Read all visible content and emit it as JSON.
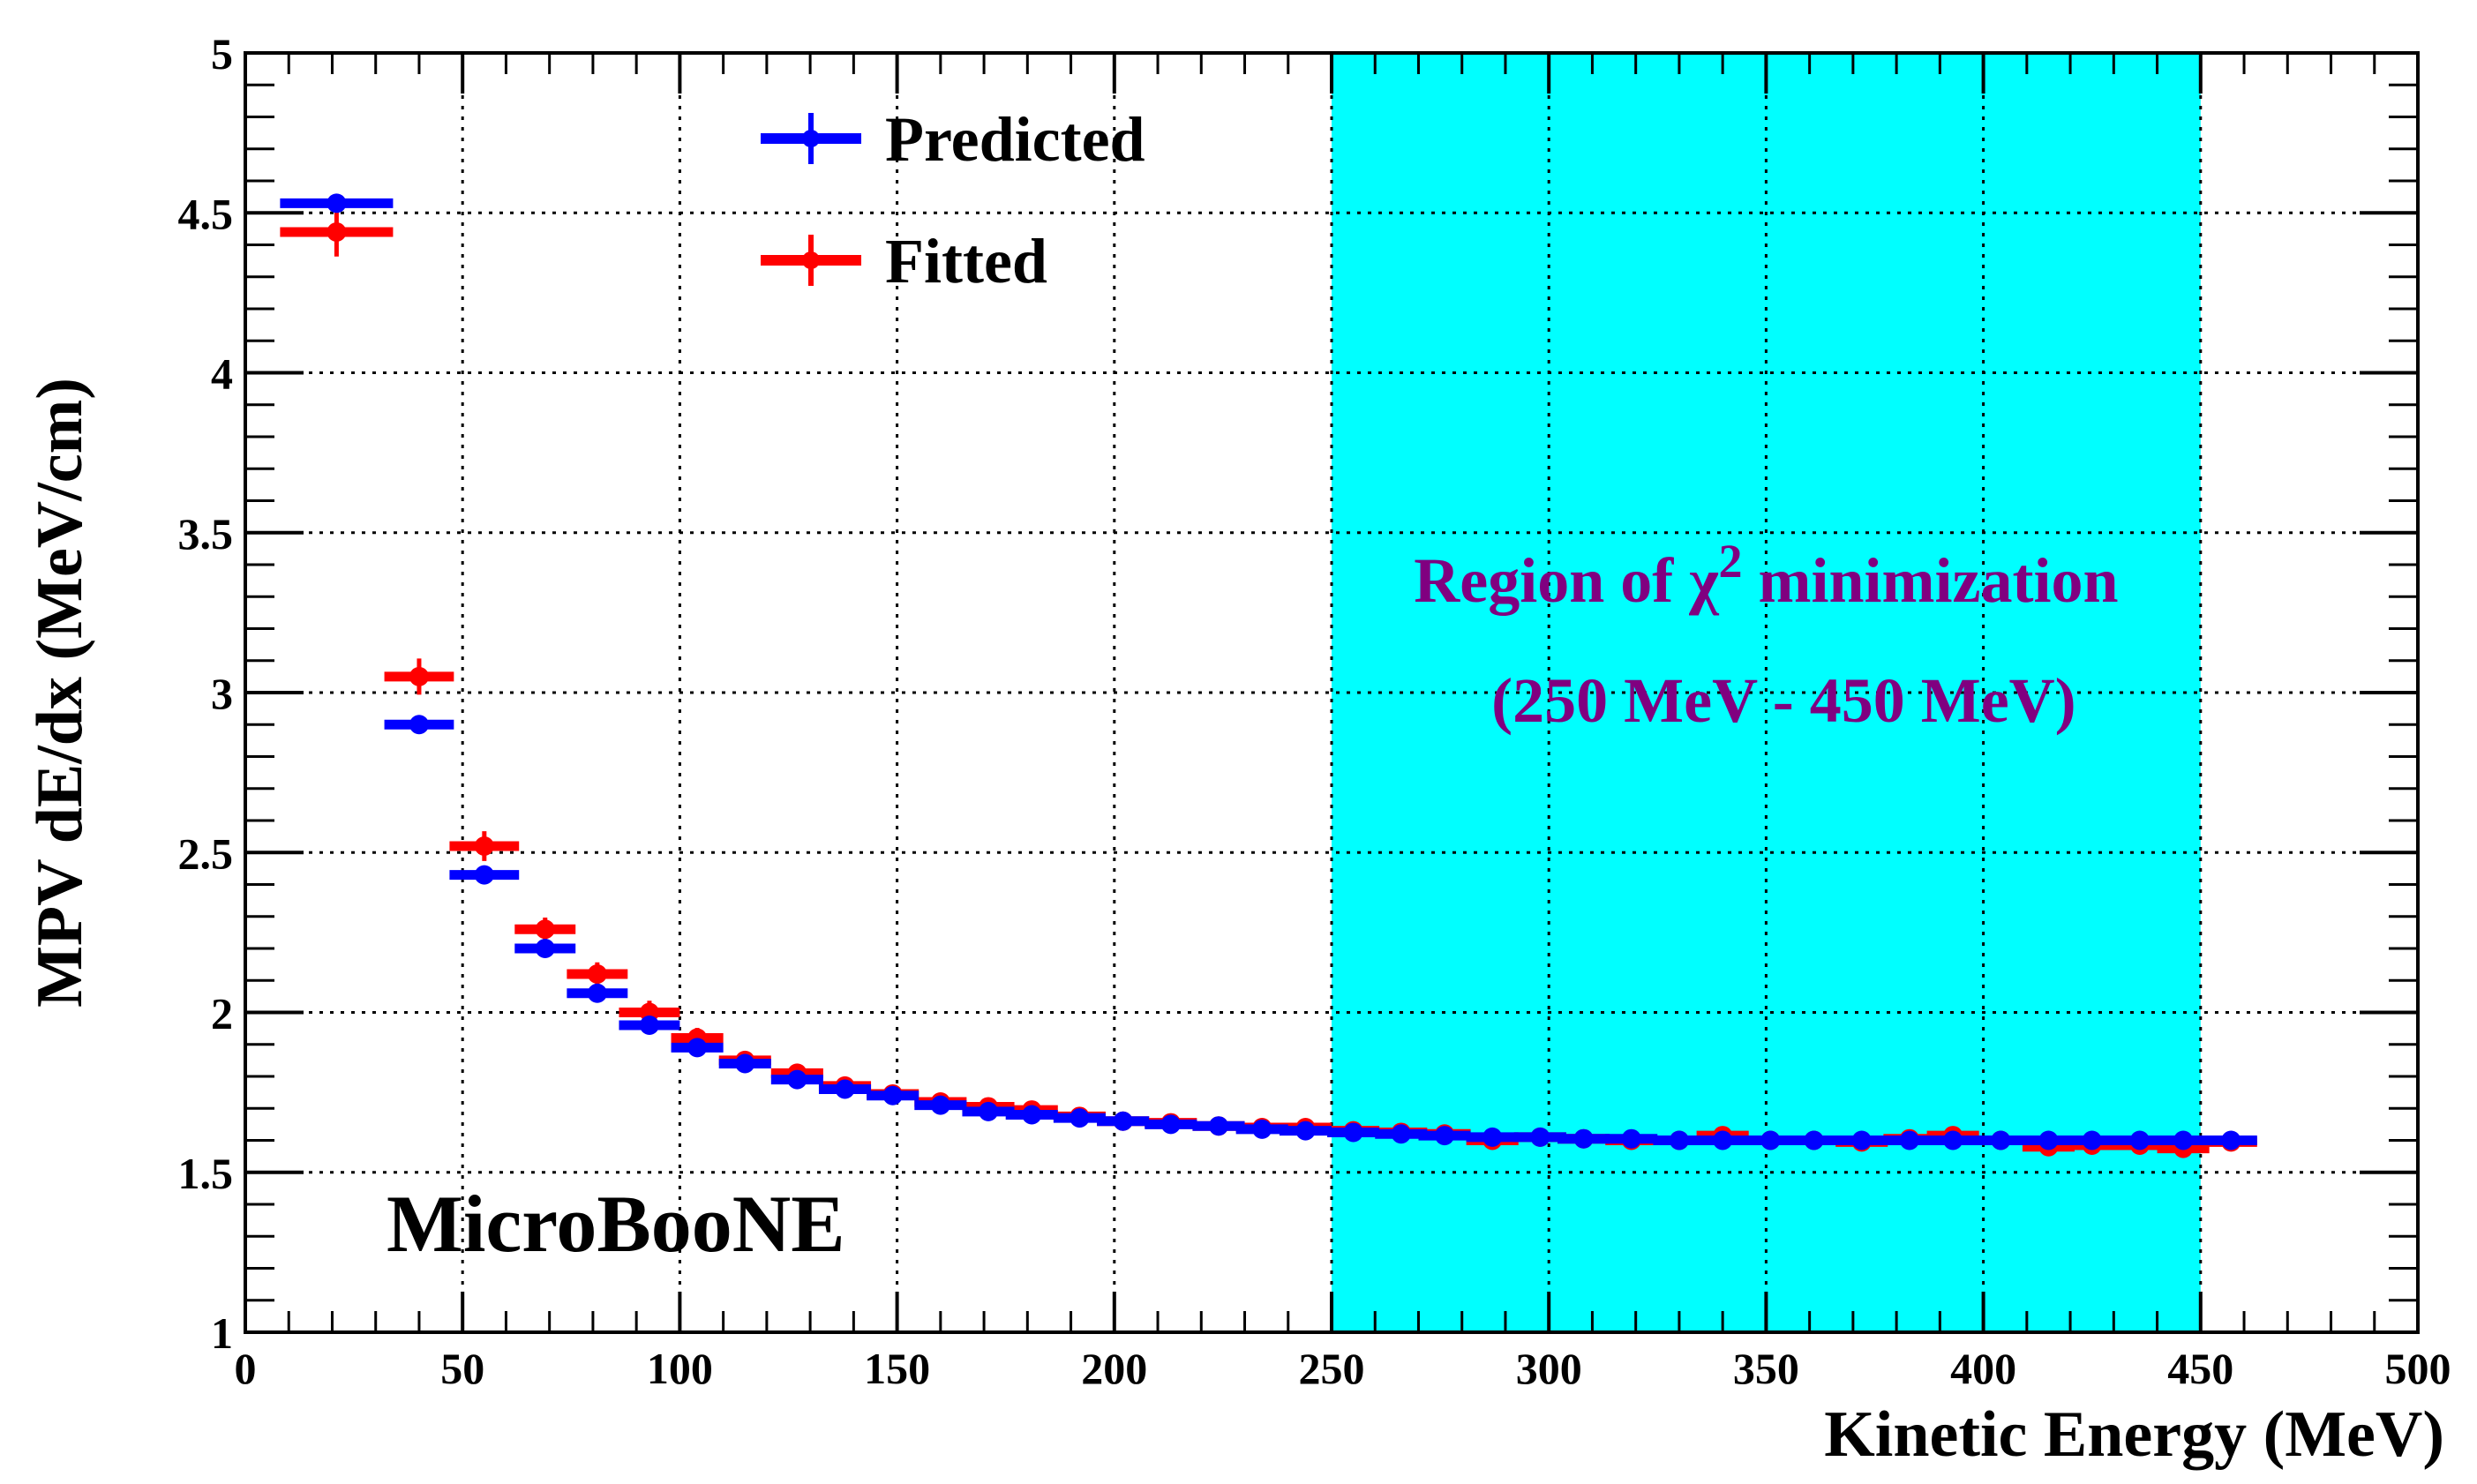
{
  "chart_data": {
    "type": "scatter",
    "title": "",
    "xlabel": "Kinetic Energy (MeV)",
    "ylabel": "MPV dE/dx (MeV/cm)",
    "xlim": [
      0,
      500
    ],
    "ylim": [
      1,
      5
    ],
    "x_ticks": [
      0,
      50,
      100,
      150,
      200,
      250,
      300,
      350,
      400,
      450,
      500
    ],
    "x_tick_labels": [
      "0",
      "50",
      "100",
      "150",
      "200",
      "250",
      "300",
      "350",
      "400",
      "450",
      "500"
    ],
    "y_ticks": [
      1,
      1.5,
      2,
      2.5,
      3,
      3.5,
      4,
      4.5,
      5
    ],
    "y_tick_labels": [
      "1",
      "1.5",
      "2",
      "2.5",
      "3",
      "3.5",
      "4",
      "4.5",
      "5"
    ],
    "grid": true,
    "legend_position": "top-left",
    "highlight_region": {
      "x_range": [
        250,
        450
      ],
      "color": "#00FFFF",
      "label_line1": "Region of ",
      "label_chi": "χ",
      "label_sup": "2",
      "label_line1_end": " minimization",
      "label_line2": "(250 MeV - 450 MeV)"
    },
    "watermark": "MicroBooNE",
    "series": [
      {
        "name": "Predicted",
        "color": "#0000FF",
        "x": [
          21,
          40,
          55,
          69,
          81,
          93,
          104,
          115,
          127,
          138,
          149,
          160,
          171,
          181,
          192,
          202,
          213,
          224,
          234,
          244,
          255,
          266,
          276,
          287,
          298,
          308,
          319,
          330,
          340,
          351,
          361,
          372,
          383,
          393,
          404,
          415,
          425,
          436,
          446,
          457
        ],
        "y": [
          4.53,
          2.9,
          2.43,
          2.2,
          2.06,
          1.96,
          1.89,
          1.84,
          1.79,
          1.76,
          1.74,
          1.71,
          1.69,
          1.68,
          1.67,
          1.66,
          1.65,
          1.645,
          1.635,
          1.63,
          1.625,
          1.62,
          1.615,
          1.61,
          1.61,
          1.605,
          1.605,
          1.6,
          1.6,
          1.6,
          1.6,
          1.6,
          1.6,
          1.6,
          1.6,
          1.6,
          1.6,
          1.6,
          1.6,
          1.6
        ],
        "xerr": [
          13,
          8,
          8,
          7,
          7,
          7,
          6,
          6,
          6,
          6,
          6,
          6,
          6,
          6,
          6,
          6,
          6,
          6,
          6,
          6,
          6,
          6,
          6,
          6,
          6,
          6,
          6,
          6,
          6,
          6,
          6,
          6,
          6,
          6,
          6,
          6,
          6,
          6,
          6,
          6
        ],
        "yerr": [
          0.01,
          0.01,
          0.01,
          0.01,
          0.01,
          0.01,
          0.01,
          0.01,
          0.01,
          0.01,
          0.01,
          0.01,
          0.01,
          0.01,
          0.01,
          0.01,
          0.01,
          0.01,
          0.01,
          0.01,
          0.01,
          0.01,
          0.01,
          0.01,
          0.01,
          0.01,
          0.01,
          0.01,
          0.01,
          0.01,
          0.01,
          0.01,
          0.01,
          0.01,
          0.01,
          0.01,
          0.01,
          0.01,
          0.01,
          0.01
        ]
      },
      {
        "name": "Fitted",
        "color": "#FF0000",
        "x": [
          21,
          40,
          55,
          69,
          81,
          93,
          104,
          115,
          127,
          138,
          149,
          160,
          171,
          181,
          192,
          202,
          213,
          224,
          234,
          244,
          255,
          266,
          276,
          287,
          298,
          308,
          319,
          330,
          340,
          351,
          361,
          372,
          383,
          393,
          404,
          415,
          425,
          436,
          446,
          457
        ],
        "y": [
          4.44,
          3.05,
          2.52,
          2.26,
          2.12,
          2.0,
          1.92,
          1.85,
          1.81,
          1.77,
          1.745,
          1.72,
          1.705,
          1.695,
          1.675,
          1.66,
          1.655,
          1.645,
          1.64,
          1.64,
          1.63,
          1.625,
          1.62,
          1.6,
          1.61,
          1.605,
          1.6,
          1.6,
          1.615,
          1.6,
          1.6,
          1.595,
          1.605,
          1.615,
          1.6,
          1.58,
          1.585,
          1.585,
          1.575,
          1.595
        ],
        "xerr": [
          13,
          8,
          8,
          7,
          7,
          7,
          6,
          6,
          6,
          6,
          6,
          6,
          6,
          6,
          6,
          6,
          6,
          6,
          6,
          6,
          6,
          6,
          6,
          6,
          6,
          6,
          6,
          6,
          6,
          6,
          6,
          6,
          6,
          6,
          6,
          6,
          6,
          6,
          6,
          6
        ],
        "yerr": [
          0.06,
          0.04,
          0.03,
          0.02,
          0.02,
          0.02,
          0.015,
          0.01,
          0.01,
          0.01,
          0.01,
          0.01,
          0.01,
          0.01,
          0.01,
          0.01,
          0.01,
          0.01,
          0.01,
          0.01,
          0.01,
          0.01,
          0.01,
          0.01,
          0.01,
          0.01,
          0.01,
          0.01,
          0.01,
          0.01,
          0.01,
          0.01,
          0.01,
          0.01,
          0.01,
          0.01,
          0.01,
          0.01,
          0.01,
          0.01
        ]
      }
    ]
  }
}
